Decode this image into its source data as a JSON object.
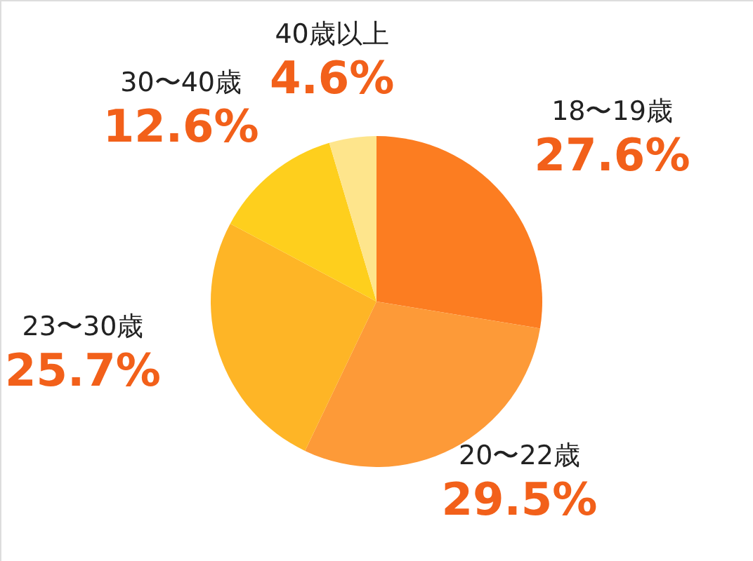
{
  "chart_data": {
    "type": "pie",
    "categories": [
      "18〜19歳",
      "20〜22歳",
      "23〜30歳",
      "30〜40歳",
      "40歳以上"
    ],
    "values": [
      27.6,
      29.5,
      25.7,
      12.6,
      4.6
    ],
    "value_labels": [
      "27.6%",
      "29.5%",
      "25.7%",
      "12.6%",
      "4.6%"
    ],
    "colors": [
      "#fc7d21",
      "#fd9a38",
      "#feb526",
      "#fecf1d",
      "#fee58c"
    ]
  }
}
